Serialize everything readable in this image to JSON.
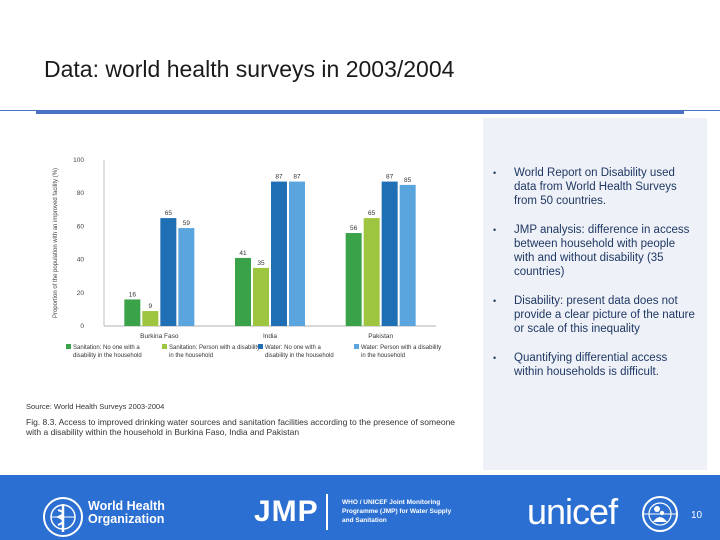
{
  "slide": {
    "title": "Data: world health surveys  in 2003/2004",
    "page_number": "10"
  },
  "bullets": [
    "World Report on Disability used data from World Health Surveys from 50 countries.",
    "JMP analysis: difference in access between household with people with and without disability (35 countries)",
    "Disability: present data does not provide a clear picture of the nature or scale of this inequality",
    "Quantifying differential access within households is  difficult."
  ],
  "figure": {
    "source": "Source: World Health Surveys 2003-2004",
    "caption_label": "Fig. 8.3.",
    "caption_text": "Access to improved drinking water sources and sanitation facilities according to the presence of someone with a disability within the household in Burkina Faso, India and Pakistan"
  },
  "chart_data": {
    "type": "bar",
    "ylabel": "Proportion of the population with an improved facility (%)",
    "ylim": [
      0,
      100
    ],
    "yticks": [
      0,
      20,
      40,
      60,
      80,
      100
    ],
    "categories": [
      "Burkina Faso",
      "India",
      "Pakistan"
    ],
    "series": [
      {
        "name": "Sanitation: No one with a disability in the household",
        "color": "#3aa34a",
        "values": [
          16,
          41,
          56
        ]
      },
      {
        "name": "Sanitation: Person with a disability in the household",
        "color": "#9dc540",
        "values": [
          9,
          35,
          65
        ]
      },
      {
        "name": "Water: No one with a disability in the household",
        "color": "#1f6fb5",
        "values": [
          65,
          87,
          87
        ]
      },
      {
        "name": "Water: Person with a disability in the household",
        "color": "#5aa5dd",
        "values": [
          59,
          87,
          85
        ]
      }
    ]
  },
  "footer": {
    "who_line1": "World Health",
    "who_line2": "Organization",
    "jmp": "JMP",
    "jmp_line1": "WHO / UNICEF Joint Monitoring",
    "jmp_line2": "Programme (JMP) for Water Supply",
    "jmp_line3": "and Sanitation",
    "unicef": "unicef",
    "background_color": "#2a6fd1"
  }
}
